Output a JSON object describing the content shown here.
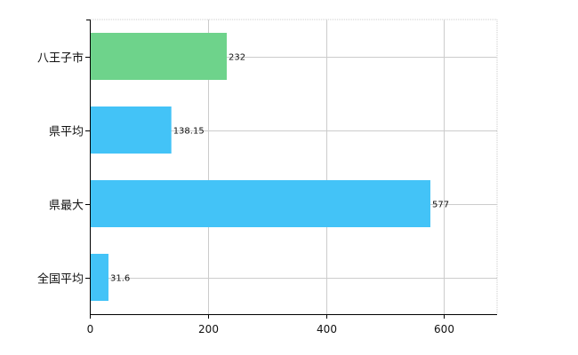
{
  "chart_data": {
    "type": "bar",
    "orientation": "horizontal",
    "categories": [
      "八王子市",
      "県平均",
      "県最大",
      "全国平均"
    ],
    "values": [
      232,
      138.15,
      577,
      31.6
    ],
    "value_labels": [
      "232",
      "138.15",
      "577",
      "31.6"
    ],
    "bar_colors": [
      "#6ed38b",
      "#43c3f7",
      "#43c3f7",
      "#43c3f7"
    ],
    "xlim": [
      0,
      690
    ],
    "xticks": [
      0,
      200,
      400,
      600
    ],
    "grid": true,
    "grid_style": "dotted",
    "title": "",
    "xlabel": "",
    "ylabel": ""
  }
}
